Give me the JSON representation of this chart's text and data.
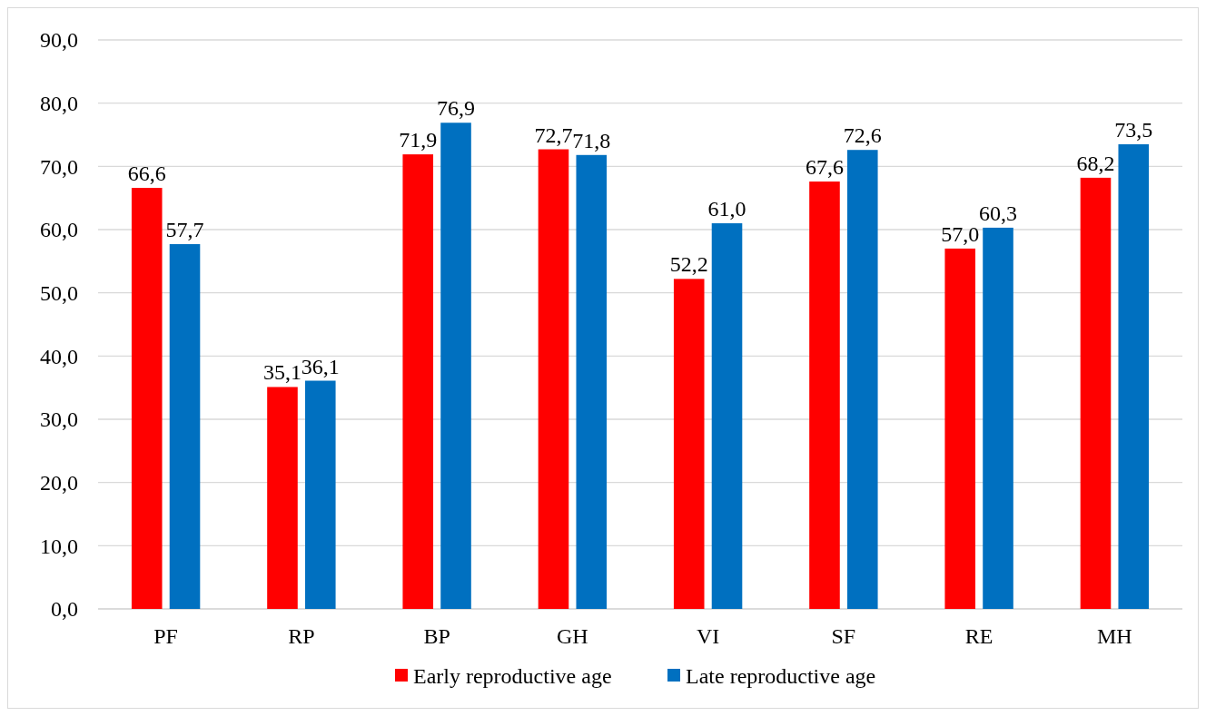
{
  "chart_data": {
    "type": "bar",
    "categories": [
      "PF",
      "RP",
      "BP",
      "GH",
      "VI",
      "SF",
      "RE",
      "MH"
    ],
    "series": [
      {
        "name": "Early reproductive age",
        "color": "#ff0000",
        "values": [
          66.6,
          35.1,
          71.9,
          72.7,
          52.2,
          67.6,
          57.0,
          68.2
        ],
        "value_labels": [
          "66,6",
          "35,1",
          "71,9",
          "72,7",
          "52,2",
          "67,6",
          "57,0",
          "68,2"
        ]
      },
      {
        "name": "Late reproductive age",
        "color": "#0070c0",
        "values": [
          57.7,
          36.1,
          76.9,
          71.8,
          61.0,
          72.6,
          60.3,
          73.5
        ],
        "value_labels": [
          "57,7",
          "36,1",
          "76,9",
          "71,8",
          "61,0",
          "72,6",
          "60,3",
          "73,5"
        ]
      }
    ],
    "ylim": [
      0,
      90
    ],
    "yticks": [
      {
        "value": 0,
        "label": "0,0"
      },
      {
        "value": 10,
        "label": "10,0"
      },
      {
        "value": 20,
        "label": "20,0"
      },
      {
        "value": 30,
        "label": "30,0"
      },
      {
        "value": 40,
        "label": "40,0"
      },
      {
        "value": 50,
        "label": "50,0"
      },
      {
        "value": 60,
        "label": "60,0"
      },
      {
        "value": 70,
        "label": "70,0"
      },
      {
        "value": 80,
        "label": "80,0"
      },
      {
        "value": 90,
        "label": "90,0"
      }
    ],
    "grid": "y",
    "legend": "bottom"
  }
}
